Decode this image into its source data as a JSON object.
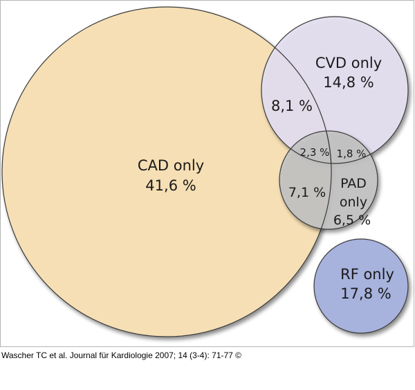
{
  "colors": {
    "cad": "#f6dfb5",
    "cvd": "#e4dff0",
    "pad": "#c3c3c3",
    "rf": "#a7b2dd",
    "outline": "#3a3a3a"
  },
  "chart_data": {
    "type": "venn",
    "sets": [
      {
        "id": "cad",
        "name": "CAD",
        "label": "CAD only",
        "value": "41,6 %"
      },
      {
        "id": "cvd",
        "name": "CVD",
        "label": "CVD only",
        "value": "14,8 %"
      },
      {
        "id": "pad",
        "name": "PAD",
        "label_lines": [
          "PAD",
          "only"
        ],
        "value": "6,5 %"
      },
      {
        "id": "rf",
        "name": "RF",
        "label": "RF only",
        "value": "17,8 %"
      }
    ],
    "overlaps": [
      {
        "sets": [
          "cad",
          "cvd"
        ],
        "value": "8,1 %"
      },
      {
        "sets": [
          "cad",
          "cvd",
          "pad"
        ],
        "value": "2,3 %"
      },
      {
        "sets": [
          "cvd",
          "pad"
        ],
        "value": "1,8 %"
      },
      {
        "sets": [
          "cad",
          "pad"
        ],
        "value": "7,1 %"
      }
    ]
  },
  "citation": {
    "text": "Wascher TC et al. Journal für Kardiologie 2007; 14 (3-4): 71-77 ©"
  }
}
